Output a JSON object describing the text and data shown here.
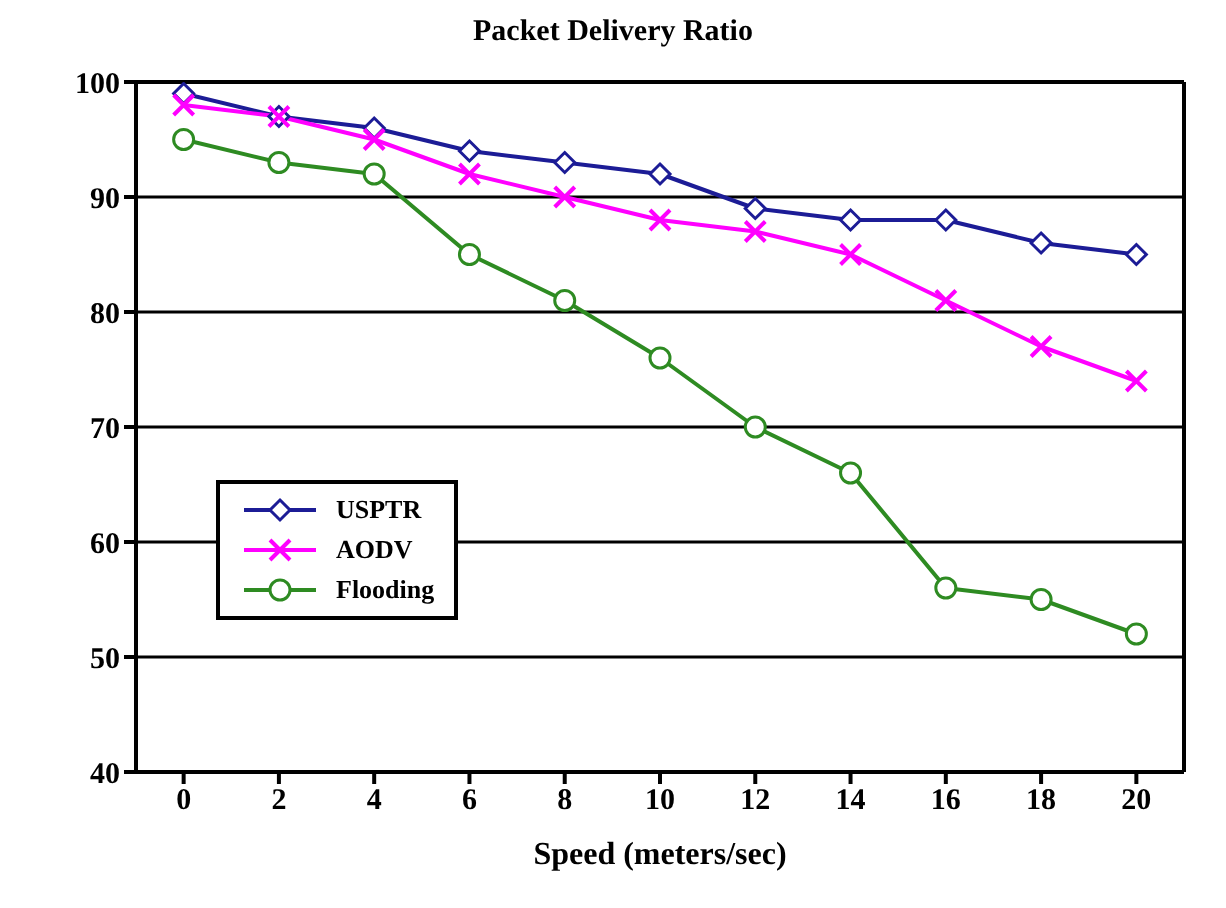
{
  "chart_data": {
    "type": "line",
    "title": "Packet Delivery Ratio",
    "xlabel": "Speed (meters/sec)",
    "x": [
      0,
      2,
      4,
      6,
      8,
      10,
      12,
      14,
      16,
      18,
      20
    ],
    "xlim": [
      -1,
      21
    ],
    "xticks": [
      0,
      2,
      4,
      6,
      8,
      10,
      12,
      14,
      16,
      18,
      20
    ],
    "ylim": [
      40,
      100
    ],
    "yticks": [
      40,
      50,
      60,
      70,
      80,
      90,
      100
    ],
    "grid": "y",
    "legend": "left",
    "series": [
      {
        "name": "USPTR",
        "color": "#1c1c96",
        "marker": "diamond",
        "values": [
          99,
          97,
          96,
          94,
          93,
          92,
          89,
          88,
          88,
          86,
          85
        ]
      },
      {
        "name": "AODV",
        "color": "#ff00ff",
        "marker": "cross",
        "values": [
          98,
          97,
          95,
          92,
          90,
          88,
          87,
          85,
          81,
          77,
          74
        ]
      },
      {
        "name": "Flooding",
        "color": "#2e8b22",
        "marker": "circle",
        "values": [
          95,
          93,
          92,
          85,
          81,
          76,
          70,
          66,
          56,
          55,
          52
        ]
      }
    ]
  }
}
